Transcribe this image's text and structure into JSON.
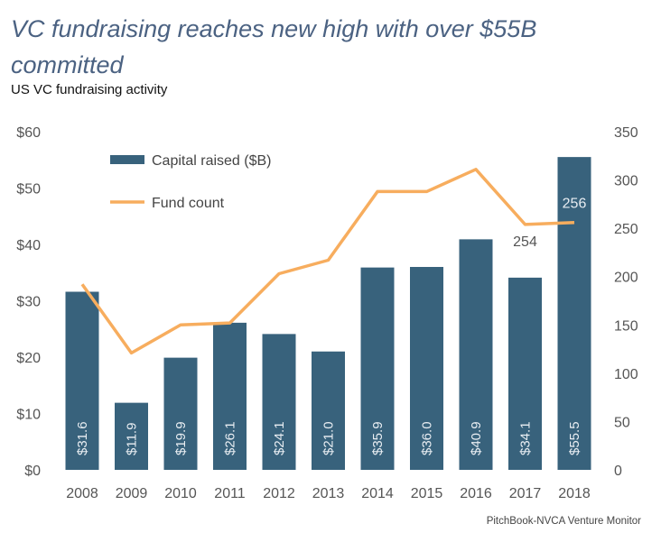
{
  "title": "VC fundraising reaches new high with over $55B committed",
  "subtitle": "US VC fundraising activity",
  "source": "PitchBook-NVCA Venture Monitor",
  "colors": {
    "bar": "#38627c",
    "line": "#f7ad5e",
    "title": "#4b6282"
  },
  "chart_data": {
    "type": "bar+line",
    "categories": [
      "2008",
      "2009",
      "2010",
      "2011",
      "2012",
      "2013",
      "2014",
      "2015",
      "2016",
      "2017",
      "2018"
    ],
    "series": [
      {
        "name": "Capital raised ($B)",
        "type": "bar",
        "axis": "left",
        "values": [
          31.6,
          11.9,
          19.9,
          26.1,
          24.1,
          21.0,
          35.9,
          36.0,
          40.9,
          34.1,
          55.5
        ],
        "labels": [
          "$31.6",
          "$11.9",
          "$19.9",
          "$26.1",
          "$24.1",
          "$21.0",
          "$35.9",
          "$36.0",
          "$40.9",
          "$34.1",
          "$55.5"
        ]
      },
      {
        "name": "Fund count",
        "type": "line",
        "axis": "right",
        "values": [
          192,
          121,
          150,
          152,
          203,
          217,
          288,
          288,
          311,
          254,
          256
        ],
        "annotations": [
          {
            "index": 9,
            "text": "254"
          },
          {
            "index": 10,
            "text": "256"
          }
        ]
      }
    ],
    "left_axis": {
      "range": [
        0,
        60
      ],
      "ticks": [
        "$0",
        "$10",
        "$20",
        "$30",
        "$40",
        "$50",
        "$60"
      ]
    },
    "right_axis": {
      "range": [
        0,
        350
      ],
      "ticks": [
        "0",
        "50",
        "100",
        "150",
        "200",
        "250",
        "300",
        "350"
      ]
    },
    "grid": false,
    "legend": "top-left"
  }
}
